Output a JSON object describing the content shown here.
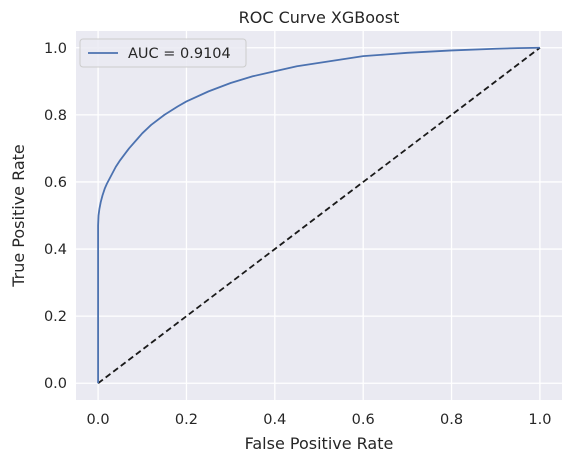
{
  "chart_data": {
    "type": "line",
    "title": "ROC Curve XGBoost",
    "xlabel": "False Positive Rate",
    "ylabel": "True Positive Rate",
    "xlim": [
      -0.05,
      1.05
    ],
    "ylim": [
      -0.05,
      1.05
    ],
    "xticks": [
      "0.0",
      "0.2",
      "0.4",
      "0.6",
      "0.8",
      "1.0"
    ],
    "yticks": [
      "0.0",
      "0.2",
      "0.4",
      "0.6",
      "0.8",
      "1.0"
    ],
    "grid": true,
    "legend_position": "top-left",
    "series": [
      {
        "name": "AUC = 0.9104",
        "color": "#4c72b0",
        "style": "solid",
        "x": [
          0.0,
          0.0,
          0.001,
          0.003,
          0.006,
          0.01,
          0.015,
          0.02,
          0.03,
          0.04,
          0.05,
          0.07,
          0.09,
          0.1,
          0.12,
          0.15,
          0.18,
          0.2,
          0.25,
          0.3,
          0.35,
          0.4,
          0.45,
          0.5,
          0.55,
          0.6,
          0.65,
          0.7,
          0.8,
          0.9,
          0.95,
          1.0
        ],
        "y": [
          0.0,
          0.47,
          0.5,
          0.52,
          0.54,
          0.56,
          0.58,
          0.595,
          0.62,
          0.645,
          0.665,
          0.7,
          0.73,
          0.745,
          0.77,
          0.8,
          0.825,
          0.84,
          0.87,
          0.895,
          0.915,
          0.93,
          0.945,
          0.955,
          0.965,
          0.975,
          0.98,
          0.985,
          0.992,
          0.997,
          0.999,
          1.0
        ]
      },
      {
        "name": "",
        "color": "#1a1a1a",
        "style": "dashed",
        "x": [
          0.0,
          1.0
        ],
        "y": [
          0.0,
          1.0
        ]
      }
    ]
  },
  "colors": {
    "plot_background": "#eaeaf2",
    "grid": "#ffffff",
    "roc_line": "#4c72b0",
    "diagonal": "#1a1a1a"
  }
}
